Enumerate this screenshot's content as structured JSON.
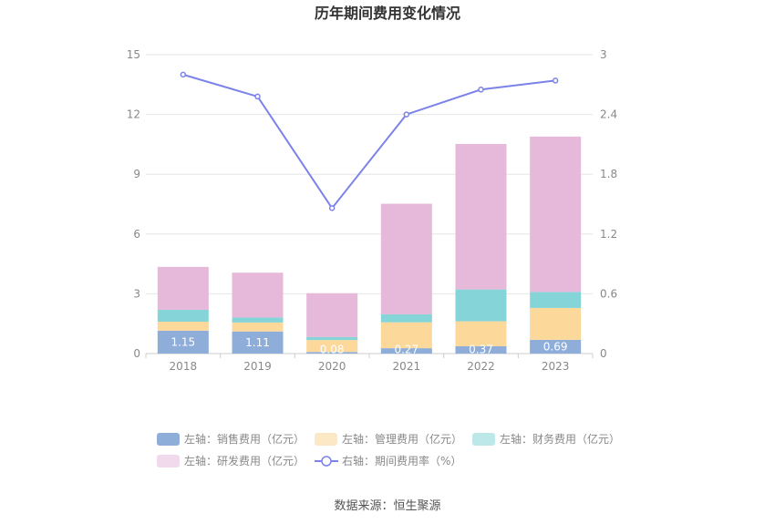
{
  "chart_data": {
    "type": "bar",
    "stacked": true,
    "title": "历年期间费用变化情况",
    "categories": [
      "2018",
      "2019",
      "2020",
      "2021",
      "2022",
      "2023"
    ],
    "series": [
      {
        "name": "左轴：销售费用（亿元）",
        "axis": "left",
        "color": "#8eadd9",
        "legend_color": "#8eadd9",
        "values": [
          1.15,
          1.11,
          0.08,
          0.27,
          0.37,
          0.69
        ],
        "labels": [
          "1.15",
          "1.11",
          "0.08",
          "0.27",
          "0.37",
          "0.69"
        ]
      },
      {
        "name": "左轴：管理费用（亿元）",
        "axis": "left",
        "color": "#fdd89b",
        "legend_color": "#fde8c5",
        "values": [
          0.45,
          0.45,
          0.6,
          1.3,
          1.25,
          1.6
        ]
      },
      {
        "name": "左轴：财务费用（亿元）",
        "axis": "left",
        "color": "#85d5d8",
        "legend_color": "#bde8e9",
        "values": [
          0.6,
          0.25,
          0.15,
          0.4,
          1.6,
          0.8
        ]
      },
      {
        "name": "左轴：研发费用（亿元）",
        "axis": "left",
        "color": "#e6b8d9",
        "legend_color": "#f1daeb",
        "values": [
          2.15,
          2.25,
          2.2,
          5.55,
          7.3,
          7.8
        ]
      },
      {
        "name": "右轴：期间费用率（%）",
        "axis": "right",
        "type": "line",
        "color": "#7b83e8",
        "values": [
          2.8,
          2.58,
          1.46,
          2.4,
          2.65,
          2.74
        ]
      }
    ],
    "left_axis": {
      "min": 0,
      "max": 15,
      "ticks": [
        "0",
        "3",
        "6",
        "9",
        "12",
        "15"
      ]
    },
    "right_axis": {
      "min": 0,
      "max": 3,
      "ticks": [
        "0",
        "0.6",
        "1.2",
        "1.8",
        "2.4",
        "3"
      ]
    },
    "source": "数据来源：恒生聚源"
  }
}
